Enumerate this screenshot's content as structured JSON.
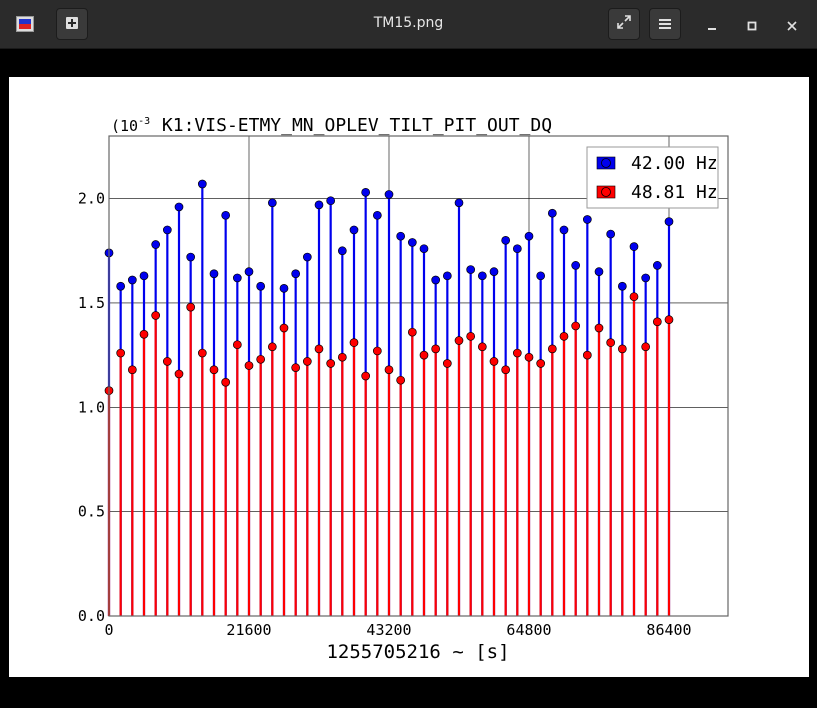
{
  "window": {
    "title": "TM15.png"
  },
  "colors": {
    "series1": "#0000ee",
    "series2": "#ff0000",
    "titlebar": "#2b2b2b"
  },
  "icons": [
    "app-icon",
    "new-tab-icon",
    "fullscreen-icon",
    "menu-icon",
    "minimize-icon",
    "maximize-icon",
    "close-icon"
  ],
  "chart_data": {
    "type": "scatter",
    "title": "K1:VIS-ETMY_MN_OPLEV_TILT_PIT_OUT_DQ",
    "xlabel": "1255705216 ~ [s]",
    "ylabel": "",
    "y_multiplier": "(10",
    "y_multiplier_exp": "-3",
    "xlim": [
      0,
      86400
    ],
    "ylim": [
      0,
      0.0023
    ],
    "xticks": [
      "0",
      "21600",
      "43200",
      "64800",
      "86400"
    ],
    "yticks": [
      "0.0",
      "0.5",
      "1.0",
      "1.5",
      "2.0"
    ],
    "grid": true,
    "legend_position": "top-right",
    "series": [
      {
        "name": "42.00 Hz",
        "x": [
          0,
          1800,
          3600,
          5400,
          7200,
          9000,
          10800,
          12600,
          14400,
          16200,
          18000,
          19800,
          21600,
          23400,
          25200,
          27000,
          28800,
          30600,
          32400,
          34200,
          36000,
          37800,
          39600,
          41400,
          43200,
          45000,
          46800,
          48600,
          50400,
          52200,
          54000,
          55800,
          57600,
          59400,
          61200,
          63000,
          64800,
          66600,
          68400,
          70200,
          72000,
          73800,
          75600,
          77400,
          79200,
          81000,
          82800,
          84600,
          86400
        ],
        "y": [
          0.00174,
          0.00158,
          0.00161,
          0.00163,
          0.00178,
          0.00185,
          0.00196,
          0.00172,
          0.00207,
          0.00164,
          0.00192,
          0.00162,
          0.00165,
          0.00158,
          0.00198,
          0.00157,
          0.00164,
          0.00172,
          0.00197,
          0.00199,
          0.00175,
          0.00185,
          0.00203,
          0.00192,
          0.00202,
          0.00182,
          0.00179,
          0.00176,
          0.00161,
          0.00163,
          0.00198,
          0.00166,
          0.00163,
          0.00165,
          0.0018,
          0.00176,
          0.00182,
          0.00163,
          0.00193,
          0.00185,
          0.00168,
          0.0019,
          0.00165,
          0.00183,
          0.00158,
          0.00177,
          0.00162,
          0.00168,
          0.00189
        ]
      },
      {
        "name": "48.81 Hz",
        "x": [
          0,
          1800,
          3600,
          5400,
          7200,
          9000,
          10800,
          12600,
          14400,
          16200,
          18000,
          19800,
          21600,
          23400,
          25200,
          27000,
          28800,
          30600,
          32400,
          34200,
          36000,
          37800,
          39600,
          41400,
          43200,
          45000,
          46800,
          48600,
          50400,
          52200,
          54000,
          55800,
          57600,
          59400,
          61200,
          63000,
          64800,
          66600,
          68400,
          70200,
          72000,
          73800,
          75600,
          77400,
          79200,
          81000,
          82800,
          84600,
          86400
        ],
        "y": [
          0.00108,
          0.00126,
          0.00118,
          0.00135,
          0.00144,
          0.00122,
          0.00116,
          0.00148,
          0.00126,
          0.00118,
          0.00112,
          0.0013,
          0.0012,
          0.00123,
          0.00129,
          0.00138,
          0.00119,
          0.00122,
          0.00128,
          0.00121,
          0.00124,
          0.00131,
          0.00115,
          0.00127,
          0.00118,
          0.00113,
          0.00136,
          0.00125,
          0.00128,
          0.00121,
          0.00132,
          0.00134,
          0.00129,
          0.00122,
          0.00118,
          0.00126,
          0.00124,
          0.00121,
          0.00128,
          0.00134,
          0.00139,
          0.00125,
          0.00138,
          0.00131,
          0.00128,
          0.00153,
          0.00129,
          0.00141,
          0.00142
        ]
      }
    ]
  }
}
